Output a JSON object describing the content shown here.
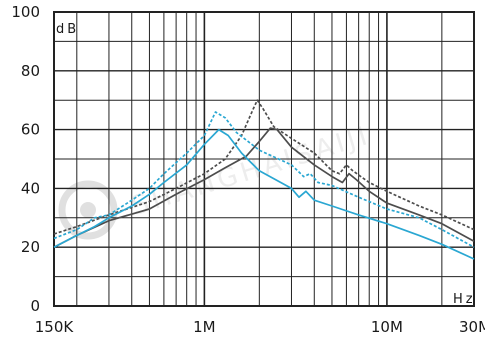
{
  "watermark": "SHANGHAISAIJI",
  "chart_data": {
    "type": "line",
    "x_scale": "log",
    "xlim": [
      150000,
      30000000
    ],
    "ylim": [
      0,
      100
    ],
    "ylabel_unit": "dB",
    "xlabel_unit": "Hz",
    "grid": true,
    "x_tick_labels": [
      {
        "value": 150000,
        "label": "150K"
      },
      {
        "value": 1000000,
        "label": "1M"
      },
      {
        "value": 10000000,
        "label": "10M"
      },
      {
        "value": 30000000,
        "label": "30M"
      }
    ],
    "y_tick_labels": [
      {
        "value": 0,
        "label": "0"
      },
      {
        "value": 20,
        "label": "20"
      },
      {
        "value": 40,
        "label": "40"
      },
      {
        "value": 60,
        "label": "60"
      },
      {
        "value": 80,
        "label": "80"
      },
      {
        "value": 100,
        "label": "100"
      }
    ],
    "series": [
      {
        "color": "#4d4d4d",
        "style": "dashed",
        "points": [
          [
            150000,
            24.5
          ],
          [
            200000,
            27
          ],
          [
            300000,
            31
          ],
          [
            500000,
            35.5
          ],
          [
            700000,
            40
          ],
          [
            1000000,
            45
          ],
          [
            1300000,
            50
          ],
          [
            1600000,
            58
          ],
          [
            1850000,
            67
          ],
          [
            1950000,
            70
          ],
          [
            2100000,
            67
          ],
          [
            2400000,
            61
          ],
          [
            3000000,
            57
          ],
          [
            4000000,
            52
          ],
          [
            5000000,
            46
          ],
          [
            5500000,
            45
          ],
          [
            6000000,
            48
          ],
          [
            6500000,
            46
          ],
          [
            8000000,
            42
          ],
          [
            10000000,
            39
          ],
          [
            15000000,
            34
          ],
          [
            20000000,
            31
          ],
          [
            30000000,
            26
          ]
        ]
      },
      {
        "color": "#4d4d4d",
        "style": "solid",
        "points": [
          [
            150000,
            20
          ],
          [
            200000,
            24
          ],
          [
            300000,
            29
          ],
          [
            500000,
            33
          ],
          [
            700000,
            38
          ],
          [
            1000000,
            43
          ],
          [
            1300000,
            47
          ],
          [
            1700000,
            51
          ],
          [
            2000000,
            56
          ],
          [
            2300000,
            60.5
          ],
          [
            2500000,
            60
          ],
          [
            3000000,
            54
          ],
          [
            4000000,
            48
          ],
          [
            5000000,
            44
          ],
          [
            5700000,
            42
          ],
          [
            6200000,
            45
          ],
          [
            6800000,
            43
          ],
          [
            8000000,
            39
          ],
          [
            10000000,
            35
          ],
          [
            15000000,
            31
          ],
          [
            20000000,
            28
          ],
          [
            30000000,
            22
          ]
        ]
      },
      {
        "color": "#2aa7d2",
        "style": "dashed",
        "points": [
          [
            150000,
            23
          ],
          [
            200000,
            26
          ],
          [
            250000,
            30
          ],
          [
            300000,
            31
          ],
          [
            400000,
            36
          ],
          [
            500000,
            40
          ],
          [
            600000,
            45
          ],
          [
            800000,
            52
          ],
          [
            1000000,
            58
          ],
          [
            1150000,
            66
          ],
          [
            1300000,
            64
          ],
          [
            1500000,
            59
          ],
          [
            2000000,
            53
          ],
          [
            3000000,
            48
          ],
          [
            3500000,
            44
          ],
          [
            3800000,
            45
          ],
          [
            4200000,
            42
          ],
          [
            5000000,
            41
          ],
          [
            7000000,
            37
          ],
          [
            10000000,
            33
          ],
          [
            15000000,
            30
          ],
          [
            20000000,
            26
          ],
          [
            30000000,
            20
          ]
        ]
      },
      {
        "color": "#2aa7d2",
        "style": "solid",
        "points": [
          [
            150000,
            20
          ],
          [
            200000,
            24
          ],
          [
            250000,
            27
          ],
          [
            300000,
            30
          ],
          [
            400000,
            34
          ],
          [
            500000,
            38
          ],
          [
            600000,
            42
          ],
          [
            800000,
            48
          ],
          [
            1000000,
            55
          ],
          [
            1200000,
            60
          ],
          [
            1350000,
            58
          ],
          [
            1600000,
            52
          ],
          [
            2000000,
            46
          ],
          [
            3000000,
            40
          ],
          [
            3300000,
            37
          ],
          [
            3600000,
            39
          ],
          [
            4000000,
            36
          ],
          [
            5000000,
            34
          ],
          [
            7000000,
            31
          ],
          [
            10000000,
            28
          ],
          [
            15000000,
            24
          ],
          [
            20000000,
            21
          ],
          [
            30000000,
            16
          ]
        ]
      }
    ]
  }
}
